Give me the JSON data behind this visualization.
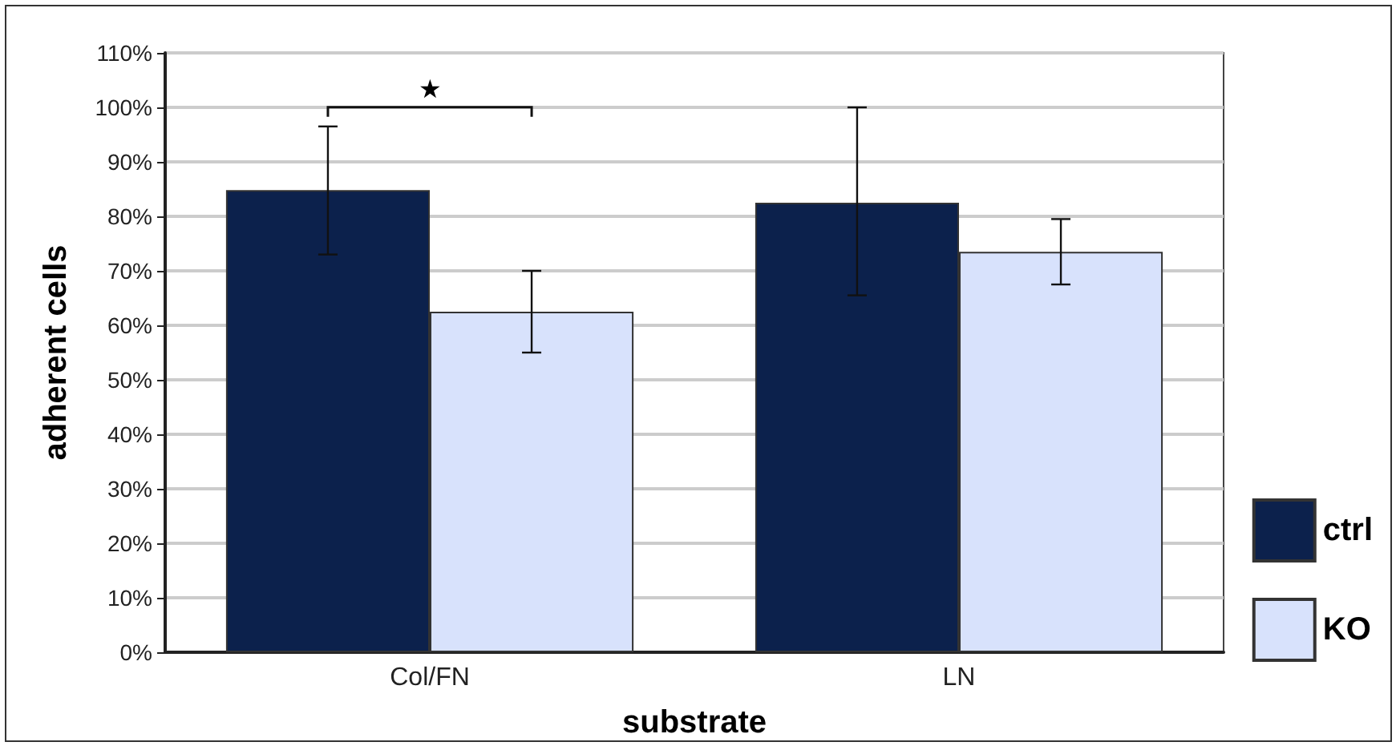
{
  "chart_data": {
    "type": "bar",
    "xlabel": "substrate",
    "ylabel": "adherent cells",
    "categories": [
      "Col/FN",
      "LN"
    ],
    "series": [
      {
        "name": "ctrl",
        "color": "#0c214c",
        "values": [
          84.8,
          82.5
        ],
        "errors": [
          [
            73,
            96.5
          ],
          [
            65.5,
            100
          ]
        ]
      },
      {
        "name": "KO",
        "color": "#d8e2fc",
        "values": [
          62.5,
          73.5
        ],
        "errors": [
          [
            55,
            70
          ],
          [
            67.5,
            79.5
          ]
        ]
      }
    ],
    "ylim": [
      0,
      110
    ],
    "yticks": [
      {
        "value": 0,
        "label": "0%"
      },
      {
        "value": 10,
        "label": "10%"
      },
      {
        "value": 20,
        "label": "20%"
      },
      {
        "value": 30,
        "label": "30%"
      },
      {
        "value": 40,
        "label": "40%"
      },
      {
        "value": 50,
        "label": "50%"
      },
      {
        "value": 60,
        "label": "60%"
      },
      {
        "value": 70,
        "label": "70%"
      },
      {
        "value": 80,
        "label": "80%"
      },
      {
        "value": 90,
        "label": "90%"
      },
      {
        "value": 100,
        "label": "100%"
      },
      {
        "value": 110,
        "label": "110%"
      }
    ],
    "grid": "y",
    "legend": "bottom right",
    "annotations": [
      "★"
    ]
  }
}
